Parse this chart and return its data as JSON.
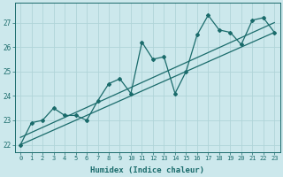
{
  "xlabel": "Humidex (Indice chaleur)",
  "bg_color": "#cce8ec",
  "grid_color": "#b0d4d8",
  "line_color": "#1a6b6b",
  "x_ticks": [
    0,
    1,
    2,
    3,
    4,
    5,
    6,
    7,
    8,
    9,
    10,
    11,
    12,
    13,
    14,
    15,
    16,
    17,
    18,
    19,
    20,
    21,
    22,
    23
  ],
  "y_ticks": [
    22,
    23,
    24,
    25,
    26,
    27
  ],
  "ylim": [
    21.7,
    27.8
  ],
  "xlim": [
    -0.5,
    23.5
  ],
  "series1_x": [
    0,
    1,
    2,
    3,
    4,
    5,
    6,
    7,
    8,
    9,
    10,
    11,
    12,
    13,
    14,
    15,
    16,
    17,
    18,
    19,
    20,
    21,
    22,
    23
  ],
  "series1_y": [
    22.0,
    22.9,
    23.0,
    23.5,
    23.2,
    23.2,
    23.0,
    23.8,
    24.5,
    24.7,
    24.1,
    26.2,
    25.5,
    25.6,
    24.1,
    25.0,
    26.5,
    27.3,
    26.7,
    26.6,
    26.1,
    27.1,
    27.2,
    26.6
  ],
  "trend1_x": [
    0,
    23
  ],
  "trend1_y": [
    22.0,
    26.6
  ],
  "trend2_x": [
    0,
    23
  ],
  "trend2_y": [
    22.3,
    27.0
  ],
  "xlabel_fontsize": 6.5,
  "tick_fontsize": 5.0
}
